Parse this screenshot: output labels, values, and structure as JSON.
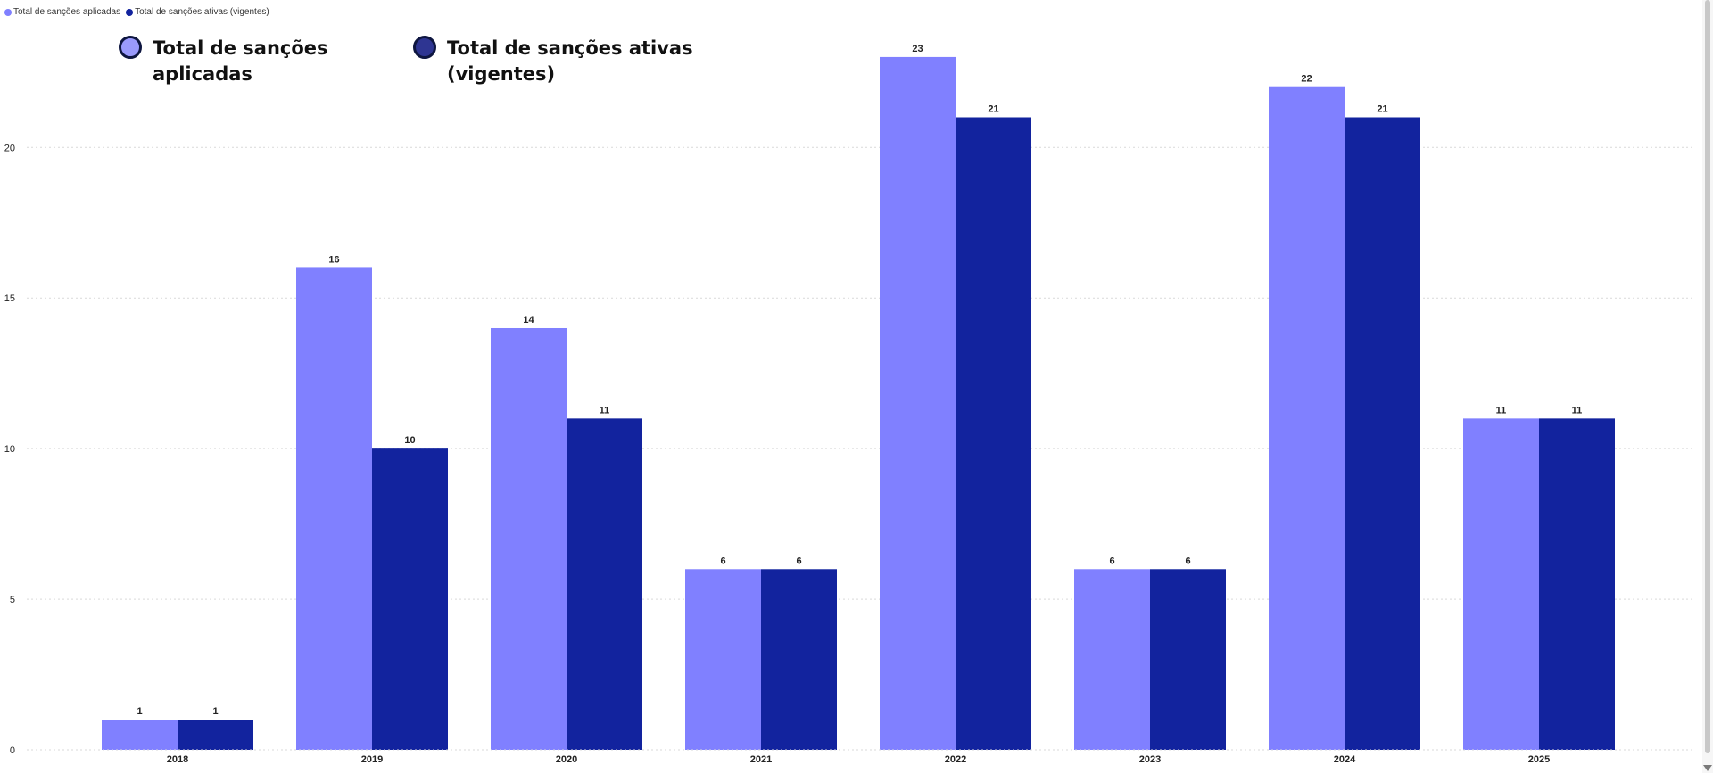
{
  "colors": {
    "series1": "#8080ff",
    "series2": "#12239e",
    "legend_circle1": "#9a9afc",
    "legend_circle2": "#2e3592",
    "grid": "#d9d9d9",
    "axis_text": "#222222"
  },
  "legend_small": {
    "item1": "Total de sanções aplicadas",
    "item2": "Total de sanções ativas (vigentes)"
  },
  "legend_large": {
    "item1": "Total de sanções\naplicadas",
    "item2": "Total de sanções ativas\n(vigentes)"
  },
  "chart_data": {
    "type": "bar",
    "categories": [
      "2018",
      "2019",
      "2020",
      "2021",
      "2022",
      "2023",
      "2024",
      "2025"
    ],
    "series": [
      {
        "name": "Total de sanções aplicadas",
        "values": [
          1,
          16,
          14,
          6,
          23,
          6,
          22,
          11
        ]
      },
      {
        "name": "Total de sanções ativas (vigentes)",
        "values": [
          1,
          10,
          11,
          6,
          21,
          6,
          21,
          11
        ]
      }
    ],
    "yticks": [
      0,
      5,
      10,
      15,
      20
    ],
    "ylim": [
      0,
      24.3
    ],
    "grid": true,
    "legend_position": "top-left",
    "data_labels": true
  },
  "scrollbar": {
    "icon": "chevron-down-icon"
  }
}
